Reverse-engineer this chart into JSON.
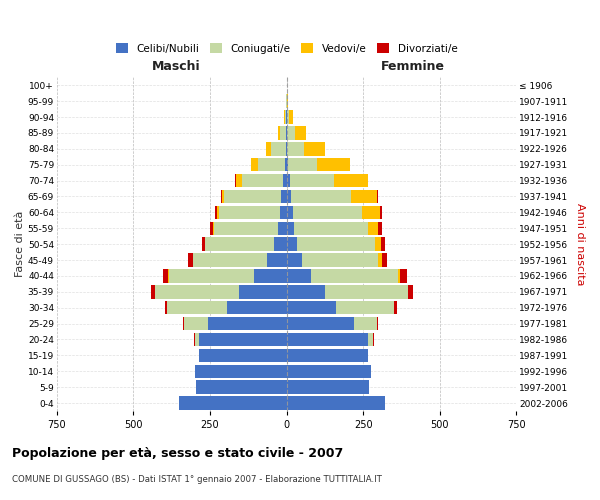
{
  "age_groups": [
    "0-4",
    "5-9",
    "10-14",
    "15-19",
    "20-24",
    "25-29",
    "30-34",
    "35-39",
    "40-44",
    "45-49",
    "50-54",
    "55-59",
    "60-64",
    "65-69",
    "70-74",
    "75-79",
    "80-84",
    "85-89",
    "90-94",
    "95-99",
    "100+"
  ],
  "birth_years": [
    "2002-2006",
    "1997-2001",
    "1992-1996",
    "1987-1991",
    "1982-1986",
    "1977-1981",
    "1972-1976",
    "1967-1971",
    "1962-1966",
    "1957-1961",
    "1952-1956",
    "1947-1951",
    "1942-1946",
    "1937-1941",
    "1932-1936",
    "1927-1931",
    "1922-1926",
    "1917-1921",
    "1912-1916",
    "1907-1911",
    "≤ 1906"
  ],
  "males": {
    "celibe": [
      350,
      295,
      300,
      285,
      285,
      255,
      195,
      155,
      105,
      65,
      40,
      28,
      22,
      18,
      12,
      6,
      3,
      2,
      1,
      0,
      0
    ],
    "coniugato": [
      0,
      0,
      0,
      2,
      15,
      80,
      195,
      275,
      280,
      240,
      225,
      210,
      200,
      185,
      135,
      88,
      48,
      18,
      5,
      1,
      0
    ],
    "vedovo": [
      0,
      0,
      0,
      0,
      0,
      0,
      0,
      0,
      1,
      1,
      2,
      3,
      5,
      8,
      18,
      22,
      16,
      8,
      3,
      1,
      0
    ],
    "divorziato": [
      0,
      0,
      0,
      0,
      1,
      2,
      8,
      12,
      18,
      15,
      8,
      8,
      5,
      3,
      2,
      1,
      1,
      0,
      0,
      0,
      0
    ]
  },
  "females": {
    "nubile": [
      320,
      270,
      275,
      265,
      265,
      220,
      160,
      125,
      80,
      50,
      35,
      25,
      20,
      15,
      10,
      6,
      3,
      2,
      1,
      0,
      0
    ],
    "coniugata": [
      0,
      0,
      0,
      2,
      18,
      75,
      190,
      270,
      285,
      250,
      255,
      240,
      225,
      195,
      145,
      95,
      55,
      25,
      7,
      2,
      0
    ],
    "vedova": [
      0,
      0,
      0,
      0,
      0,
      1,
      2,
      3,
      5,
      10,
      18,
      35,
      60,
      85,
      110,
      105,
      68,
      38,
      14,
      4,
      1
    ],
    "divorziata": [
      0,
      0,
      0,
      0,
      1,
      3,
      8,
      15,
      22,
      18,
      12,
      12,
      8,
      5,
      2,
      1,
      0,
      0,
      0,
      0,
      0
    ]
  },
  "color_celibe": "#4472c4",
  "color_coniugato": "#c5d9a4",
  "color_vedovo": "#ffc000",
  "color_divorziato": "#cc0000",
  "xlim": 750,
  "title": "Popolazione per età, sesso e stato civile - 2007",
  "subtitle": "COMUNE DI GUSSAGO (BS) - Dati ISTAT 1° gennaio 2007 - Elaborazione TUTTITALIA.IT",
  "ylabel_left": "Fasce di età",
  "ylabel_right": "Anni di nascita",
  "xlabel_left": "Maschi",
  "xlabel_right": "Femmine"
}
